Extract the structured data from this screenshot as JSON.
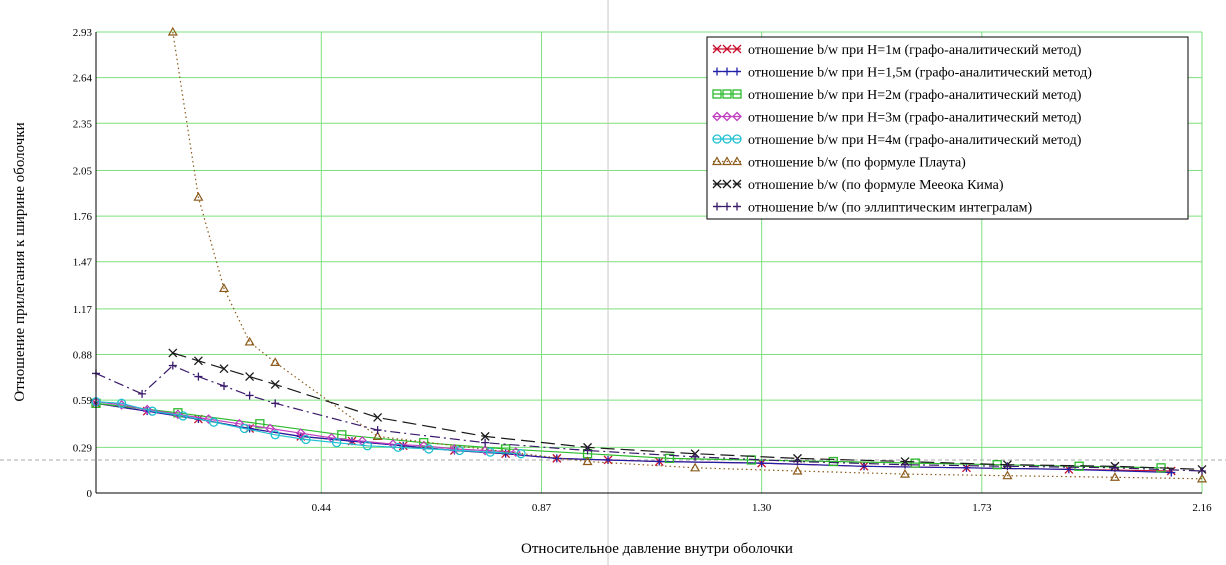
{
  "chart_data": {
    "type": "line",
    "xlabel": "Относительное давление внутри оболочки",
    "ylabel": "Отношение прилегания к ширине оболочки",
    "xlim": [
      0,
      2.16
    ],
    "ylim": [
      0,
      2.93
    ],
    "x_ticks": [
      "0.44",
      "0.87",
      "1.30",
      "1.73",
      "2.16"
    ],
    "y_ticks": [
      "0",
      "0.29",
      "0.59",
      "0.88",
      "1.17",
      "1.47",
      "1.76",
      "2.05",
      "2.35",
      "2.64",
      "2.93"
    ],
    "grid": true,
    "legend_position": "top-right",
    "crosshair": {
      "x": 1.0,
      "y": 0.21
    },
    "series": [
      {
        "name": "отношение b/w при H=1м (графо-аналитический метод)",
        "color": "#c8102e",
        "marker": "x",
        "dash": "solid",
        "points": [
          [
            0.0,
            0.57
          ],
          [
            0.1,
            0.52
          ],
          [
            0.2,
            0.47
          ],
          [
            0.3,
            0.41
          ],
          [
            0.4,
            0.36
          ],
          [
            0.5,
            0.33
          ],
          [
            0.6,
            0.3
          ],
          [
            0.7,
            0.27
          ],
          [
            0.8,
            0.25
          ],
          [
            0.9,
            0.22
          ],
          [
            1.0,
            0.21
          ],
          [
            1.1,
            0.2
          ],
          [
            1.3,
            0.19
          ],
          [
            1.5,
            0.17
          ],
          [
            1.7,
            0.16
          ],
          [
            1.9,
            0.15
          ],
          [
            2.1,
            0.14
          ]
        ]
      },
      {
        "name": "отношение b/w при H=1,5м (графо-аналитический метод)",
        "color": "#1f1fa8",
        "marker": "+",
        "dash": "solid",
        "points": [
          [
            0.0,
            0.57
          ],
          [
            0.1,
            0.52
          ],
          [
            0.2,
            0.47
          ],
          [
            0.3,
            0.41
          ],
          [
            0.4,
            0.36
          ],
          [
            0.5,
            0.33
          ],
          [
            0.6,
            0.3
          ],
          [
            0.7,
            0.27
          ],
          [
            0.8,
            0.25
          ],
          [
            0.9,
            0.22
          ],
          [
            1.0,
            0.21
          ],
          [
            1.1,
            0.2
          ],
          [
            1.3,
            0.19
          ],
          [
            1.5,
            0.17
          ],
          [
            1.7,
            0.16
          ],
          [
            1.9,
            0.15
          ],
          [
            2.1,
            0.13
          ]
        ]
      },
      {
        "name": "отношение b/w при H=2м (графо-аналитический метод)",
        "color": "#2dbb2d",
        "marker": "square",
        "dash": "solid",
        "points": [
          [
            0.0,
            0.57
          ],
          [
            0.16,
            0.51
          ],
          [
            0.32,
            0.44
          ],
          [
            0.48,
            0.37
          ],
          [
            0.64,
            0.32
          ],
          [
            0.8,
            0.28
          ],
          [
            0.96,
            0.25
          ],
          [
            1.12,
            0.22
          ],
          [
            1.28,
            0.21
          ],
          [
            1.44,
            0.2
          ],
          [
            1.6,
            0.19
          ],
          [
            1.76,
            0.18
          ],
          [
            1.92,
            0.17
          ],
          [
            2.08,
            0.16
          ]
        ]
      },
      {
        "name": "отношение b/w при H=3м (графо-аналитический метод)",
        "color": "#c040c0",
        "marker": "diamond",
        "dash": "solid",
        "points": [
          [
            0.0,
            0.58
          ],
          [
            0.05,
            0.56
          ],
          [
            0.1,
            0.53
          ],
          [
            0.16,
            0.5
          ],
          [
            0.22,
            0.47
          ],
          [
            0.28,
            0.44
          ],
          [
            0.34,
            0.41
          ],
          [
            0.4,
            0.38
          ],
          [
            0.46,
            0.35
          ],
          [
            0.52,
            0.33
          ],
          [
            0.58,
            0.31
          ],
          [
            0.64,
            0.3
          ],
          [
            0.7,
            0.28
          ],
          [
            0.76,
            0.27
          ],
          [
            0.82,
            0.26
          ]
        ]
      },
      {
        "name": "отношение b/w при H=4м (графо-аналитический метод)",
        "color": "#20c0d0",
        "marker": "circle",
        "dash": "solid",
        "points": [
          [
            0.0,
            0.58
          ],
          [
            0.05,
            0.57
          ],
          [
            0.11,
            0.52
          ],
          [
            0.17,
            0.49
          ],
          [
            0.23,
            0.45
          ],
          [
            0.29,
            0.41
          ],
          [
            0.35,
            0.37
          ],
          [
            0.41,
            0.34
          ],
          [
            0.47,
            0.32
          ],
          [
            0.53,
            0.3
          ],
          [
            0.59,
            0.29
          ],
          [
            0.65,
            0.28
          ],
          [
            0.71,
            0.27
          ],
          [
            0.77,
            0.26
          ],
          [
            0.83,
            0.25
          ]
        ]
      },
      {
        "name": "отношение b/w (по формуле Плаута)",
        "color": "#8b5a1a",
        "marker": "triangle",
        "dash": "dotted",
        "points": [
          [
            0.15,
            2.93
          ],
          [
            0.2,
            1.88
          ],
          [
            0.25,
            1.3
          ],
          [
            0.3,
            0.96
          ],
          [
            0.35,
            0.83
          ],
          [
            0.55,
            0.36
          ],
          [
            0.96,
            0.2
          ],
          [
            1.17,
            0.16
          ],
          [
            1.37,
            0.14
          ],
          [
            1.58,
            0.12
          ],
          [
            1.78,
            0.11
          ],
          [
            1.99,
            0.1
          ],
          [
            2.16,
            0.09
          ]
        ]
      },
      {
        "name": "отношение b/w (по формуле Меeoка Кима)",
        "color": "#1a1a1a",
        "marker": "x",
        "dash": "longdash",
        "points": [
          [
            0.15,
            0.89
          ],
          [
            0.2,
            0.84
          ],
          [
            0.25,
            0.79
          ],
          [
            0.3,
            0.74
          ],
          [
            0.35,
            0.69
          ],
          [
            0.55,
            0.48
          ],
          [
            0.76,
            0.36
          ],
          [
            0.96,
            0.29
          ],
          [
            1.17,
            0.25
          ],
          [
            1.37,
            0.22
          ],
          [
            1.58,
            0.2
          ],
          [
            1.78,
            0.18
          ],
          [
            1.99,
            0.17
          ],
          [
            2.16,
            0.15
          ]
        ]
      },
      {
        "name": "отношение b/w (по эллиптическим интегралам)",
        "color": "#3a1a6a",
        "marker": "+",
        "dash": "dashdot",
        "points": [
          [
            0.0,
            0.76
          ],
          [
            0.09,
            0.63
          ],
          [
            0.15,
            0.81
          ],
          [
            0.2,
            0.74
          ],
          [
            0.25,
            0.68
          ],
          [
            0.3,
            0.62
          ],
          [
            0.35,
            0.57
          ],
          [
            0.55,
            0.4
          ],
          [
            0.76,
            0.32
          ],
          [
            0.96,
            0.27
          ],
          [
            1.17,
            0.23
          ],
          [
            1.37,
            0.2
          ],
          [
            1.58,
            0.18
          ],
          [
            1.78,
            0.17
          ],
          [
            1.99,
            0.16
          ],
          [
            2.16,
            0.14
          ]
        ]
      }
    ]
  }
}
